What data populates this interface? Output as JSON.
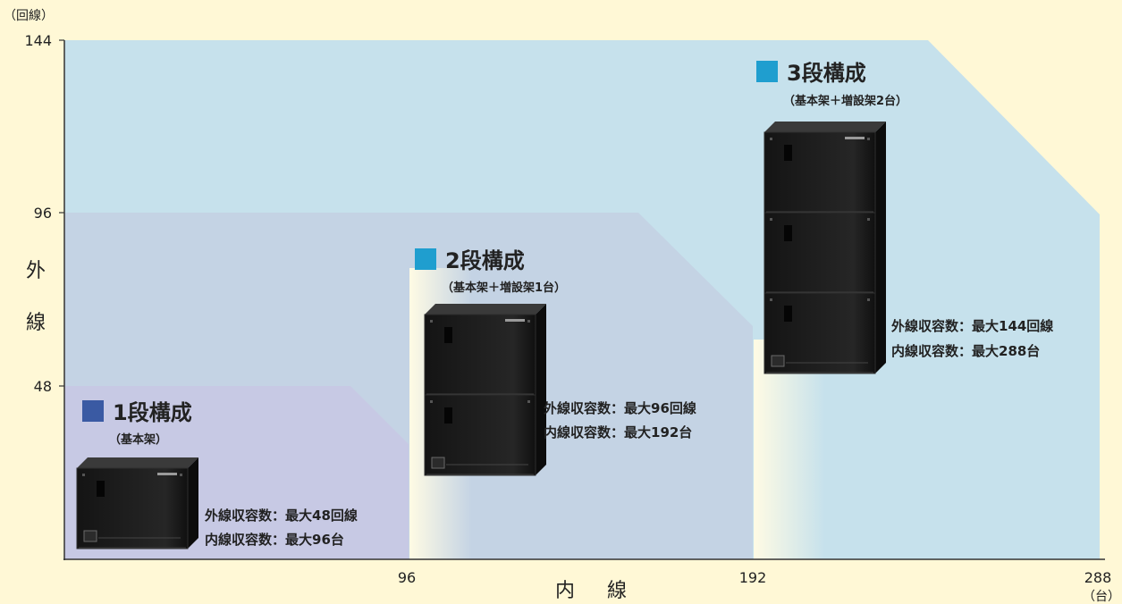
{
  "axes": {
    "y_unit": "（回線）",
    "x_unit": "（台）",
    "y_title_chars": [
      "外",
      "線"
    ],
    "x_title_chars": [
      "内",
      "線"
    ],
    "y_ticks": [
      "144",
      "96",
      "48"
    ],
    "x_ticks": [
      "96",
      "192",
      "288"
    ]
  },
  "tiers": [
    {
      "title": "1段構成",
      "subtitle": "（基本架）",
      "outside_lines": "外線収容数：最大48回線",
      "inside_lines": "内線収容数：最大96台",
      "marker_color": "#3a5aa3",
      "region_color": "#c7c9e4",
      "units": 1
    },
    {
      "title": "2段構成",
      "subtitle": "（基本架＋増設架1台）",
      "outside_lines": "外線収容数：最大96回線",
      "inside_lines": "内線収容数：最大192台",
      "marker_color": "#1f9ecf",
      "region_color": "#c4d3e4",
      "units": 2
    },
    {
      "title": "3段構成",
      "subtitle": "（基本架＋増設架2台）",
      "outside_lines": "外線収容数：最大144回線",
      "inside_lines": "内線収容数：最大288台",
      "marker_color": "#1f9ecf",
      "region_color": "#c6e1ec",
      "units": 3
    }
  ],
  "colors": {
    "background": "#fff8d6",
    "axis": "#333333",
    "cabinet": "#1c1c1c"
  }
}
